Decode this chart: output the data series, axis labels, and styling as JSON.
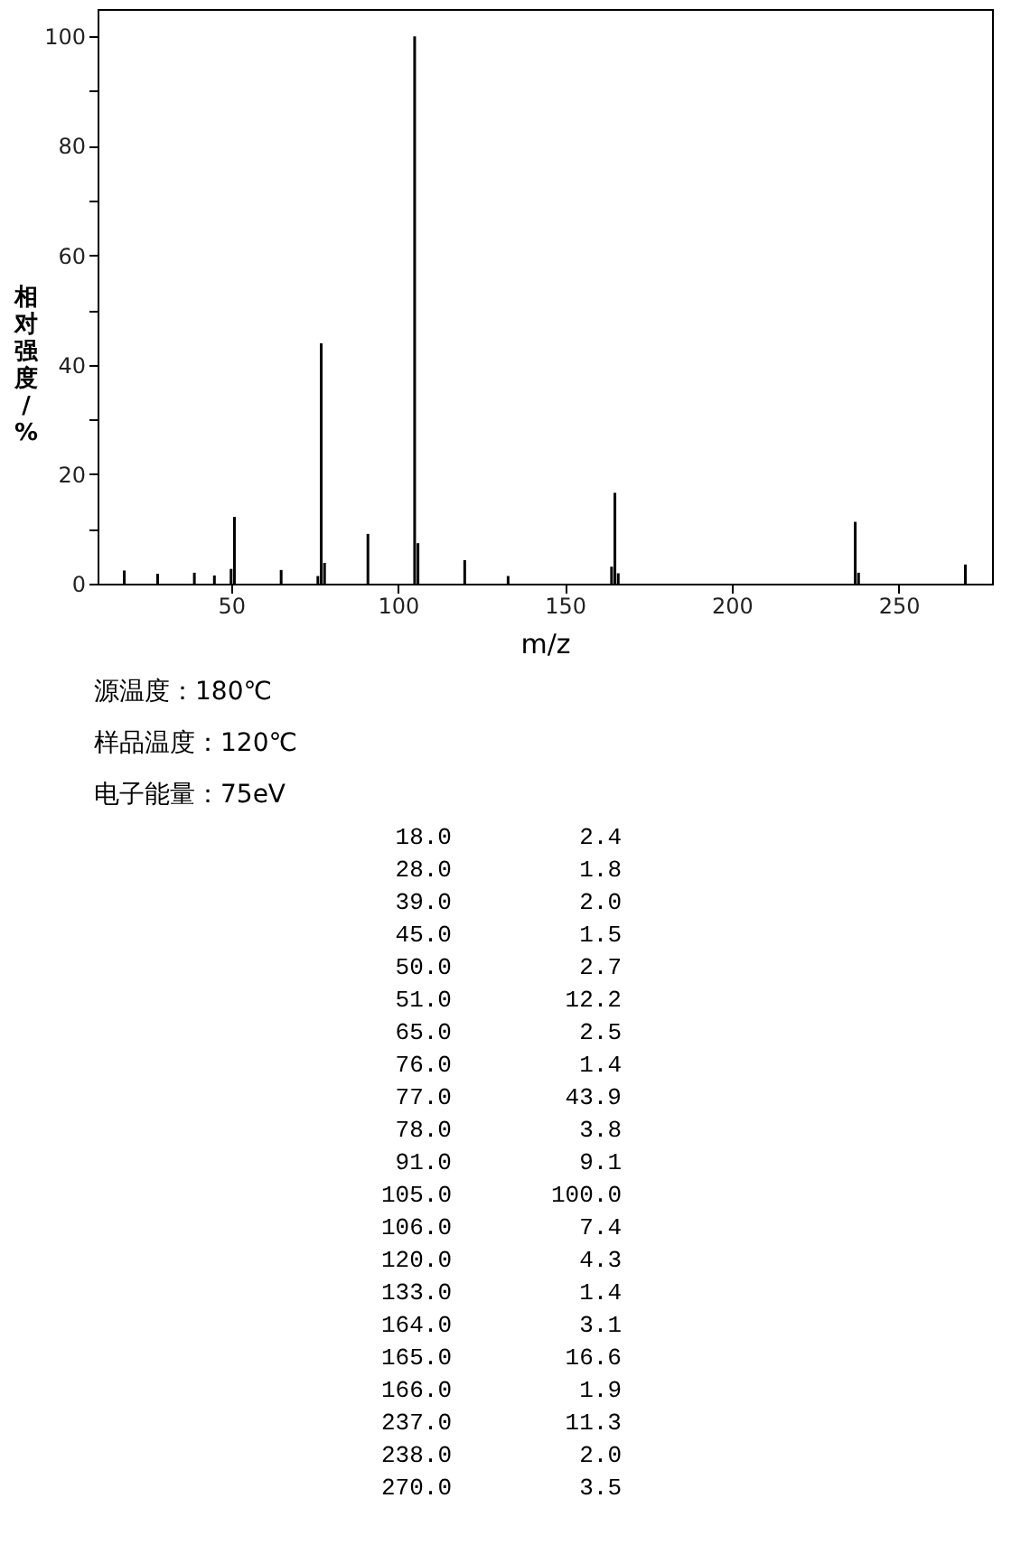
{
  "chart_data": [
    {
      "type": "bar",
      "xlabel": "m/z",
      "ylabel": "相对强度/%",
      "color": "#000000",
      "x": [
        18,
        28,
        39,
        45,
        50,
        51,
        65,
        76,
        77,
        78,
        91,
        105,
        106,
        120,
        133,
        164,
        165,
        166,
        237,
        238,
        270
      ],
      "values": [
        2.4,
        1.8,
        2.0,
        1.5,
        2.7,
        12.2,
        2.5,
        1.4,
        43.9,
        3.8,
        9.1,
        100.0,
        7.4,
        4.3,
        1.4,
        3.1,
        16.6,
        1.9,
        11.3,
        2.0,
        3.5
      ],
      "xlim": [
        10,
        278
      ],
      "xticks": [
        50,
        100,
        150,
        200,
        250
      ],
      "ylim": [
        0,
        105
      ],
      "yticks": [
        0,
        {
          "value": 10,
          "label": null
        },
        20,
        {
          "value": 30,
          "label": null
        },
        40,
        {
          "value": 50,
          "label": null
        },
        60,
        {
          "value": 70,
          "label": null
        },
        80,
        {
          "value": 90,
          "label": null
        },
        100
      ],
      "annotations": [
        "源温度：180℃",
        "样品温度：120℃",
        "电子能量：75eV"
      ]
    },
    {
      "type": "other",
      "categories": [
        "18.0",
        "28.0",
        "39.0",
        "45.0",
        "50.0",
        "51.0",
        "65.0",
        "76.0",
        "77.0",
        "78.0",
        "91.0",
        "105.0",
        "106.0",
        "120.0",
        "133.0",
        "164.0",
        "165.0",
        "166.0",
        "237.0",
        "238.0",
        "270.0"
      ],
      "values": [
        2.4,
        1.8,
        2.0,
        1.5,
        2.7,
        12.2,
        2.5,
        1.4,
        43.9,
        3.8,
        9.1,
        100.0,
        7.4,
        4.3,
        1.4,
        3.1,
        16.6,
        1.9,
        11.3,
        2.0,
        3.5
      ],
      "value_labels": [
        "2.4",
        "1.8",
        "2.0",
        "1.5",
        "2.7",
        "12.2",
        "2.5",
        "1.4",
        "43.9",
        "3.8",
        "9.1",
        "100.0",
        "7.4",
        "4.3",
        "1.4",
        "3.1",
        "16.6",
        "1.9",
        "11.3",
        "2.0",
        "3.5"
      ]
    }
  ]
}
